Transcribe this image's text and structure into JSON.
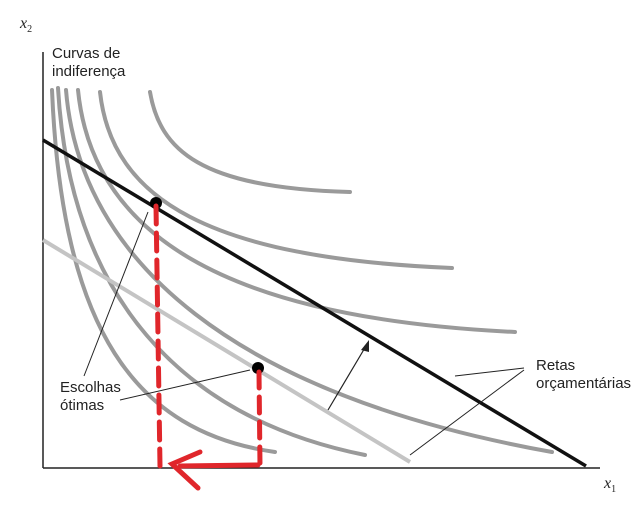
{
  "labels": {
    "y_axis": "x",
    "y_axis_sub": "2",
    "x_axis": "x",
    "x_axis_sub": "1",
    "curves_line1": "Curvas de",
    "curves_line2": "indiferença",
    "optimal_line1": "Escolhas",
    "optimal_line2": "ótimas",
    "budget_line1": "Retas",
    "budget_line2": "orçamentárias"
  },
  "colors": {
    "indifference_curve": "#9a9a9a",
    "original_budget_line": "#c4c4c4",
    "new_budget_line": "#111111",
    "annotation_line": "#222222",
    "highlight": "#e0262b"
  }
}
